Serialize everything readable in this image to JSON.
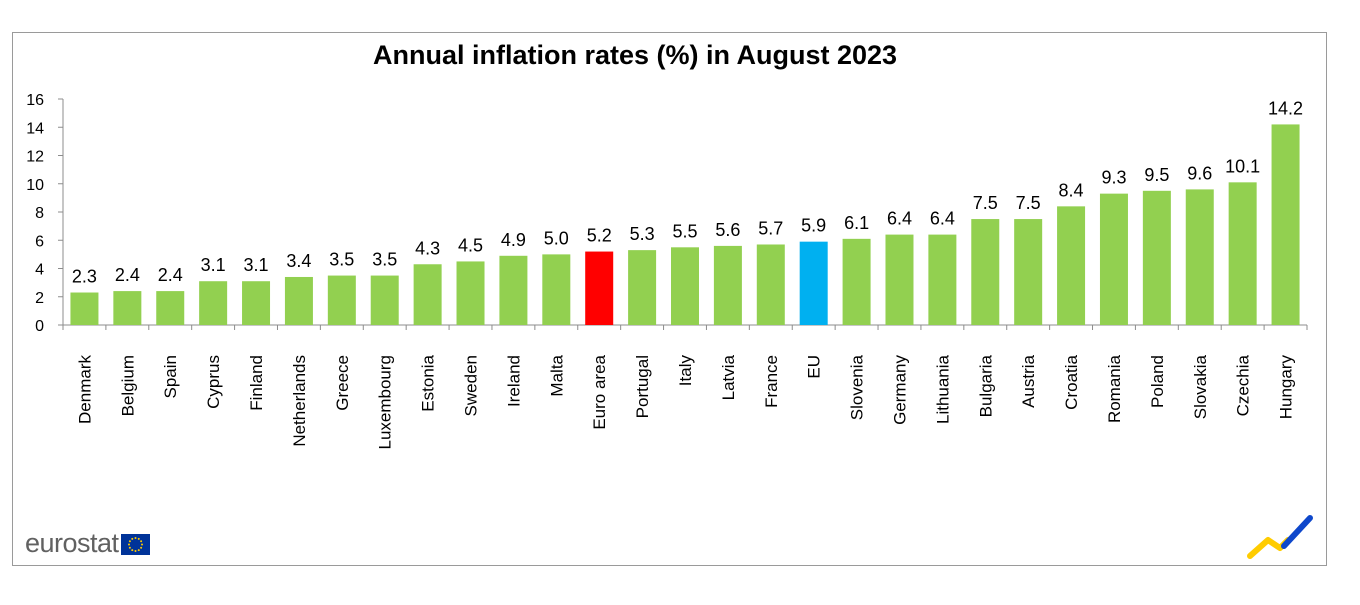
{
  "chart_data": {
    "type": "bar",
    "title": "Annual inflation rates (%) in August 2023",
    "xlabel": "",
    "ylabel": "",
    "ylim": [
      0,
      16
    ],
    "yticks": [
      "0",
      "2",
      "4",
      "6",
      "8",
      "10",
      "12",
      "14",
      "16"
    ],
    "categories": [
      "Denmark",
      "Belgium",
      "Spain",
      "Cyprus",
      "Finland",
      "Netherlands",
      "Greece",
      "Luxembourg",
      "Estonia",
      "Sweden",
      "Ireland",
      "Malta",
      "Euro area",
      "Portugal",
      "Italy",
      "Latvia",
      "France",
      "EU",
      "Slovenia",
      "Germany",
      "Lithuania",
      "Bulgaria",
      "Austria",
      "Croatia",
      "Romania",
      "Poland",
      "Slovakia",
      "Czechia",
      "Hungary"
    ],
    "values": [
      2.3,
      2.4,
      2.4,
      3.1,
      3.1,
      3.4,
      3.5,
      3.5,
      4.3,
      4.5,
      4.9,
      5.0,
      5.2,
      5.3,
      5.5,
      5.6,
      5.7,
      5.9,
      6.1,
      6.4,
      6.4,
      7.5,
      7.5,
      8.4,
      9.3,
      9.5,
      9.6,
      10.1,
      14.2
    ],
    "value_labels": [
      "2.3",
      "2.4",
      "2.4",
      "3.1",
      "3.1",
      "3.4",
      "3.5",
      "3.5",
      "4.3",
      "4.5",
      "4.9",
      "5.0",
      "5.2",
      "5.3",
      "5.5",
      "5.6",
      "5.7",
      "5.9",
      "6.1",
      "6.4",
      "6.4",
      "7.5",
      "7.5",
      "8.4",
      "9.3",
      "9.5",
      "9.6",
      "10.1",
      "14.2"
    ],
    "colors": {
      "default": "#92d050",
      "highlights": {
        "Euro area": "#ff0000",
        "EU": "#00b0f0"
      }
    },
    "grid": false,
    "legend": "none"
  },
  "logo": {
    "text": "eurostat",
    "icon": "eu-flag-icon"
  },
  "decoration": {
    "icon": "eurostat-chart-mark-icon",
    "colors": [
      "#ffcc00",
      "#0e47cb"
    ]
  }
}
